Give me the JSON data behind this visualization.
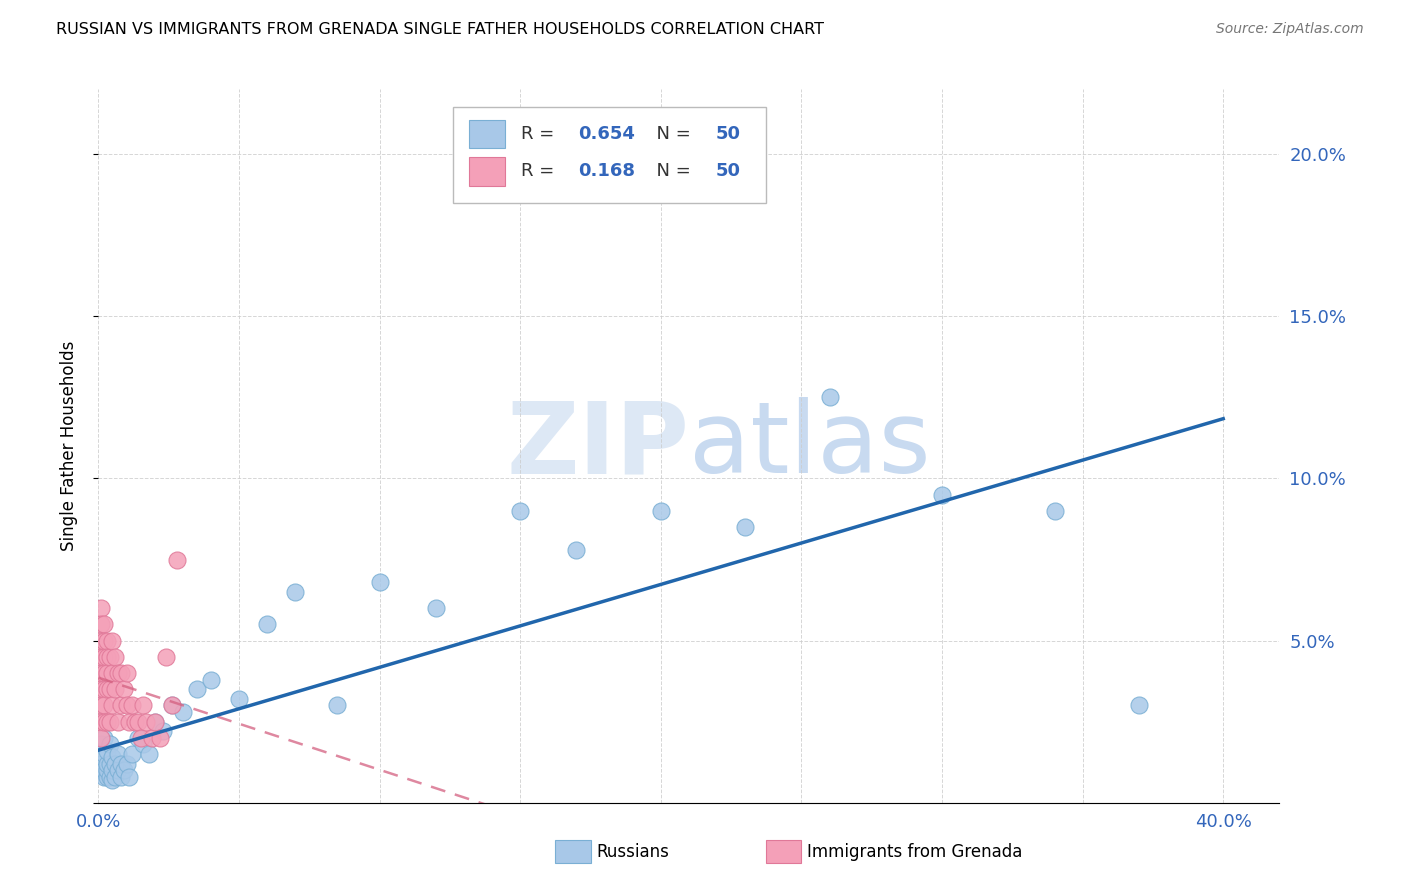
{
  "title": "RUSSIAN VS IMMIGRANTS FROM GRENADA SINGLE FATHER HOUSEHOLDS CORRELATION CHART",
  "source": "Source: ZipAtlas.com",
  "ylabel_label": "Single Father Households",
  "xlim": [
    0.0,
    0.42
  ],
  "ylim": [
    0.0,
    0.22
  ],
  "xtick_positions": [
    0.0,
    0.05,
    0.1,
    0.15,
    0.2,
    0.25,
    0.3,
    0.35,
    0.4
  ],
  "ytick_positions": [
    0.0,
    0.05,
    0.1,
    0.15,
    0.2
  ],
  "blue_color": "#a8c8e8",
  "blue_edge_color": "#7aafd4",
  "blue_line_color": "#2166ac",
  "pink_color": "#f4a0b8",
  "pink_edge_color": "#e07898",
  "pink_line_color": "#d46080",
  "watermark_color": "#dde8f5",
  "russians_x": [
    0.001,
    0.001,
    0.001,
    0.002,
    0.002,
    0.002,
    0.002,
    0.003,
    0.003,
    0.003,
    0.003,
    0.004,
    0.004,
    0.004,
    0.005,
    0.005,
    0.005,
    0.006,
    0.006,
    0.007,
    0.007,
    0.008,
    0.008,
    0.009,
    0.01,
    0.011,
    0.012,
    0.014,
    0.016,
    0.018,
    0.02,
    0.023,
    0.026,
    0.03,
    0.035,
    0.04,
    0.05,
    0.06,
    0.07,
    0.085,
    0.1,
    0.12,
    0.15,
    0.17,
    0.2,
    0.23,
    0.26,
    0.3,
    0.34,
    0.37
  ],
  "russians_y": [
    0.01,
    0.012,
    0.018,
    0.008,
    0.01,
    0.015,
    0.02,
    0.008,
    0.01,
    0.012,
    0.016,
    0.008,
    0.012,
    0.018,
    0.007,
    0.01,
    0.014,
    0.008,
    0.012,
    0.01,
    0.015,
    0.008,
    0.012,
    0.01,
    0.012,
    0.008,
    0.015,
    0.02,
    0.018,
    0.015,
    0.025,
    0.022,
    0.03,
    0.028,
    0.035,
    0.038,
    0.032,
    0.055,
    0.065,
    0.03,
    0.068,
    0.06,
    0.09,
    0.078,
    0.09,
    0.085,
    0.125,
    0.095,
    0.09,
    0.03
  ],
  "grenada_x": [
    0.001,
    0.001,
    0.001,
    0.001,
    0.001,
    0.001,
    0.001,
    0.001,
    0.001,
    0.001,
    0.002,
    0.002,
    0.002,
    0.002,
    0.002,
    0.002,
    0.002,
    0.003,
    0.003,
    0.003,
    0.003,
    0.003,
    0.004,
    0.004,
    0.004,
    0.005,
    0.005,
    0.005,
    0.006,
    0.006,
    0.007,
    0.007,
    0.008,
    0.008,
    0.009,
    0.01,
    0.01,
    0.011,
    0.012,
    0.013,
    0.014,
    0.015,
    0.016,
    0.017,
    0.019,
    0.02,
    0.022,
    0.024,
    0.026,
    0.028
  ],
  "grenada_y": [
    0.06,
    0.055,
    0.05,
    0.048,
    0.045,
    0.04,
    0.035,
    0.03,
    0.025,
    0.02,
    0.055,
    0.05,
    0.045,
    0.04,
    0.035,
    0.03,
    0.025,
    0.05,
    0.045,
    0.04,
    0.035,
    0.025,
    0.045,
    0.035,
    0.025,
    0.05,
    0.04,
    0.03,
    0.045,
    0.035,
    0.04,
    0.025,
    0.04,
    0.03,
    0.035,
    0.04,
    0.03,
    0.025,
    0.03,
    0.025,
    0.025,
    0.02,
    0.03,
    0.025,
    0.02,
    0.025,
    0.02,
    0.045,
    0.03,
    0.075
  ],
  "legend_r1": "0.654",
  "legend_r2": "0.168",
  "legend_n": "50"
}
